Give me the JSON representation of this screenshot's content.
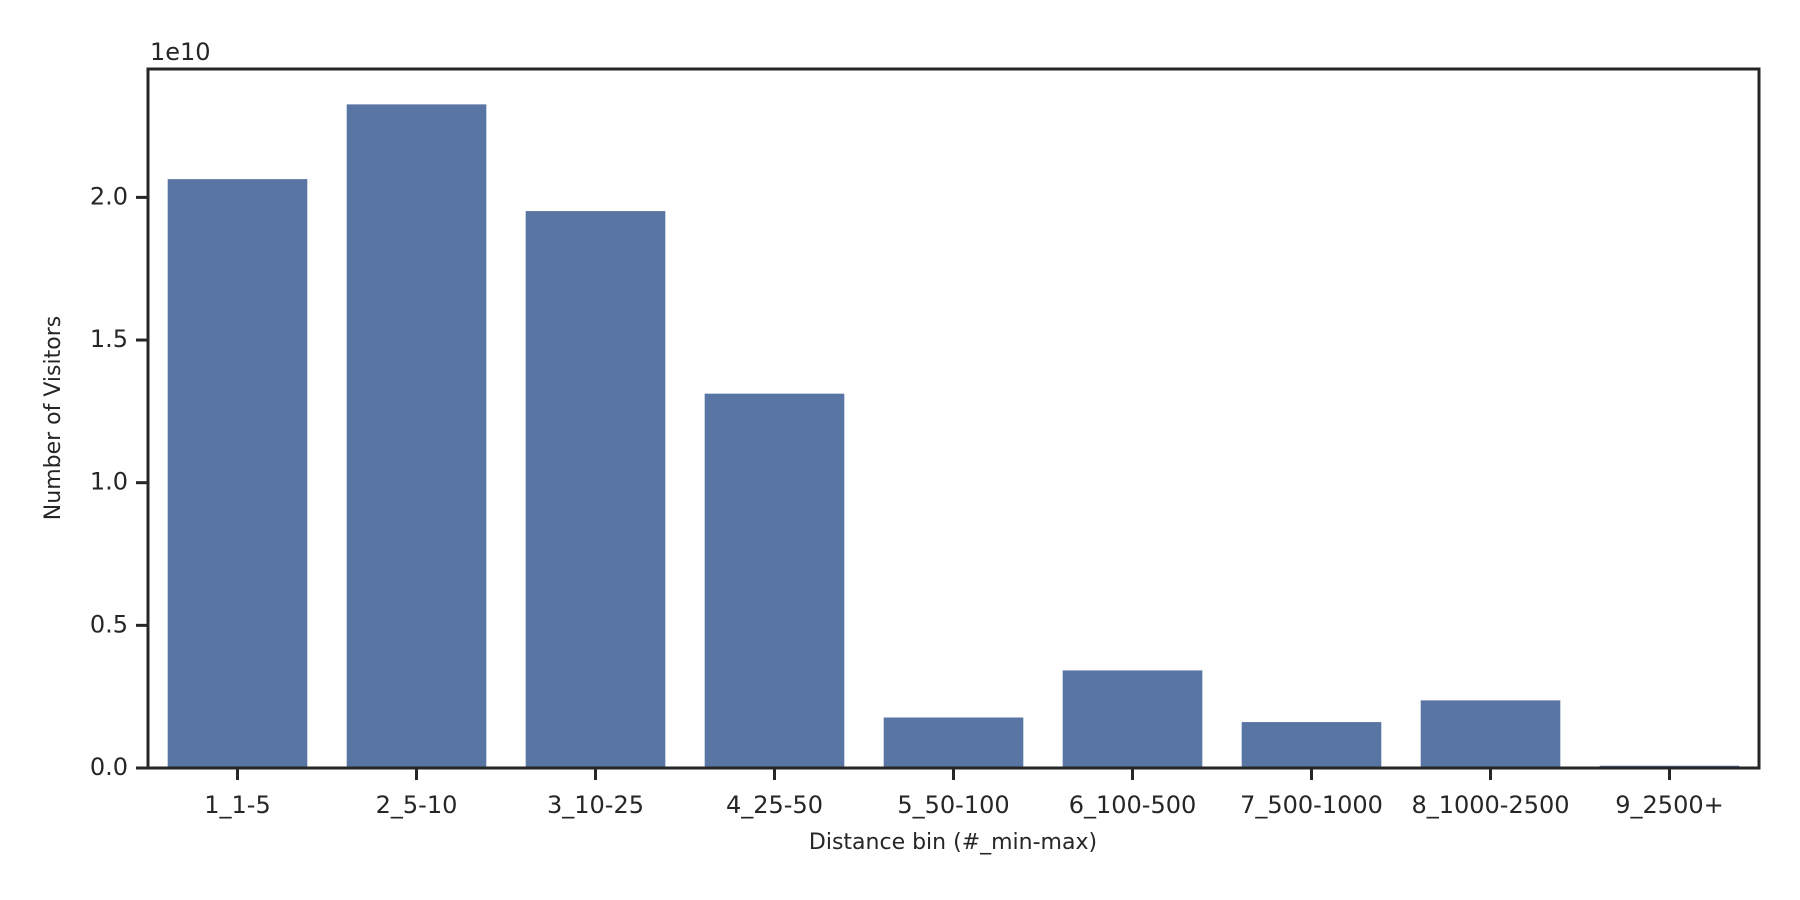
{
  "chart_data": {
    "type": "bar",
    "x_label": "Distance bin (#_min-max)",
    "y_label": "Number of Visitors",
    "y_offset_label": "1e10",
    "categories": [
      "1_1-5",
      "2_5-10",
      "3_10-25",
      "4_25-50",
      "5_50-100",
      "6_100-500",
      "7_500-1000",
      "8_1000-2500",
      "9_2500+"
    ],
    "values": [
      2.064,
      2.326,
      1.952,
      1.312,
      0.177,
      0.342,
      0.161,
      0.237,
      0.008
    ],
    "color": "#5975a4",
    "ylim": [
      0,
      2.45
    ],
    "yticks": [
      {
        "value": 0,
        "label": "0.0"
      },
      0.5,
      {
        "value": 1,
        "label": "1.0"
      },
      1.5,
      {
        "value": 2,
        "label": "2.0"
      }
    ],
    "grid": false
  }
}
